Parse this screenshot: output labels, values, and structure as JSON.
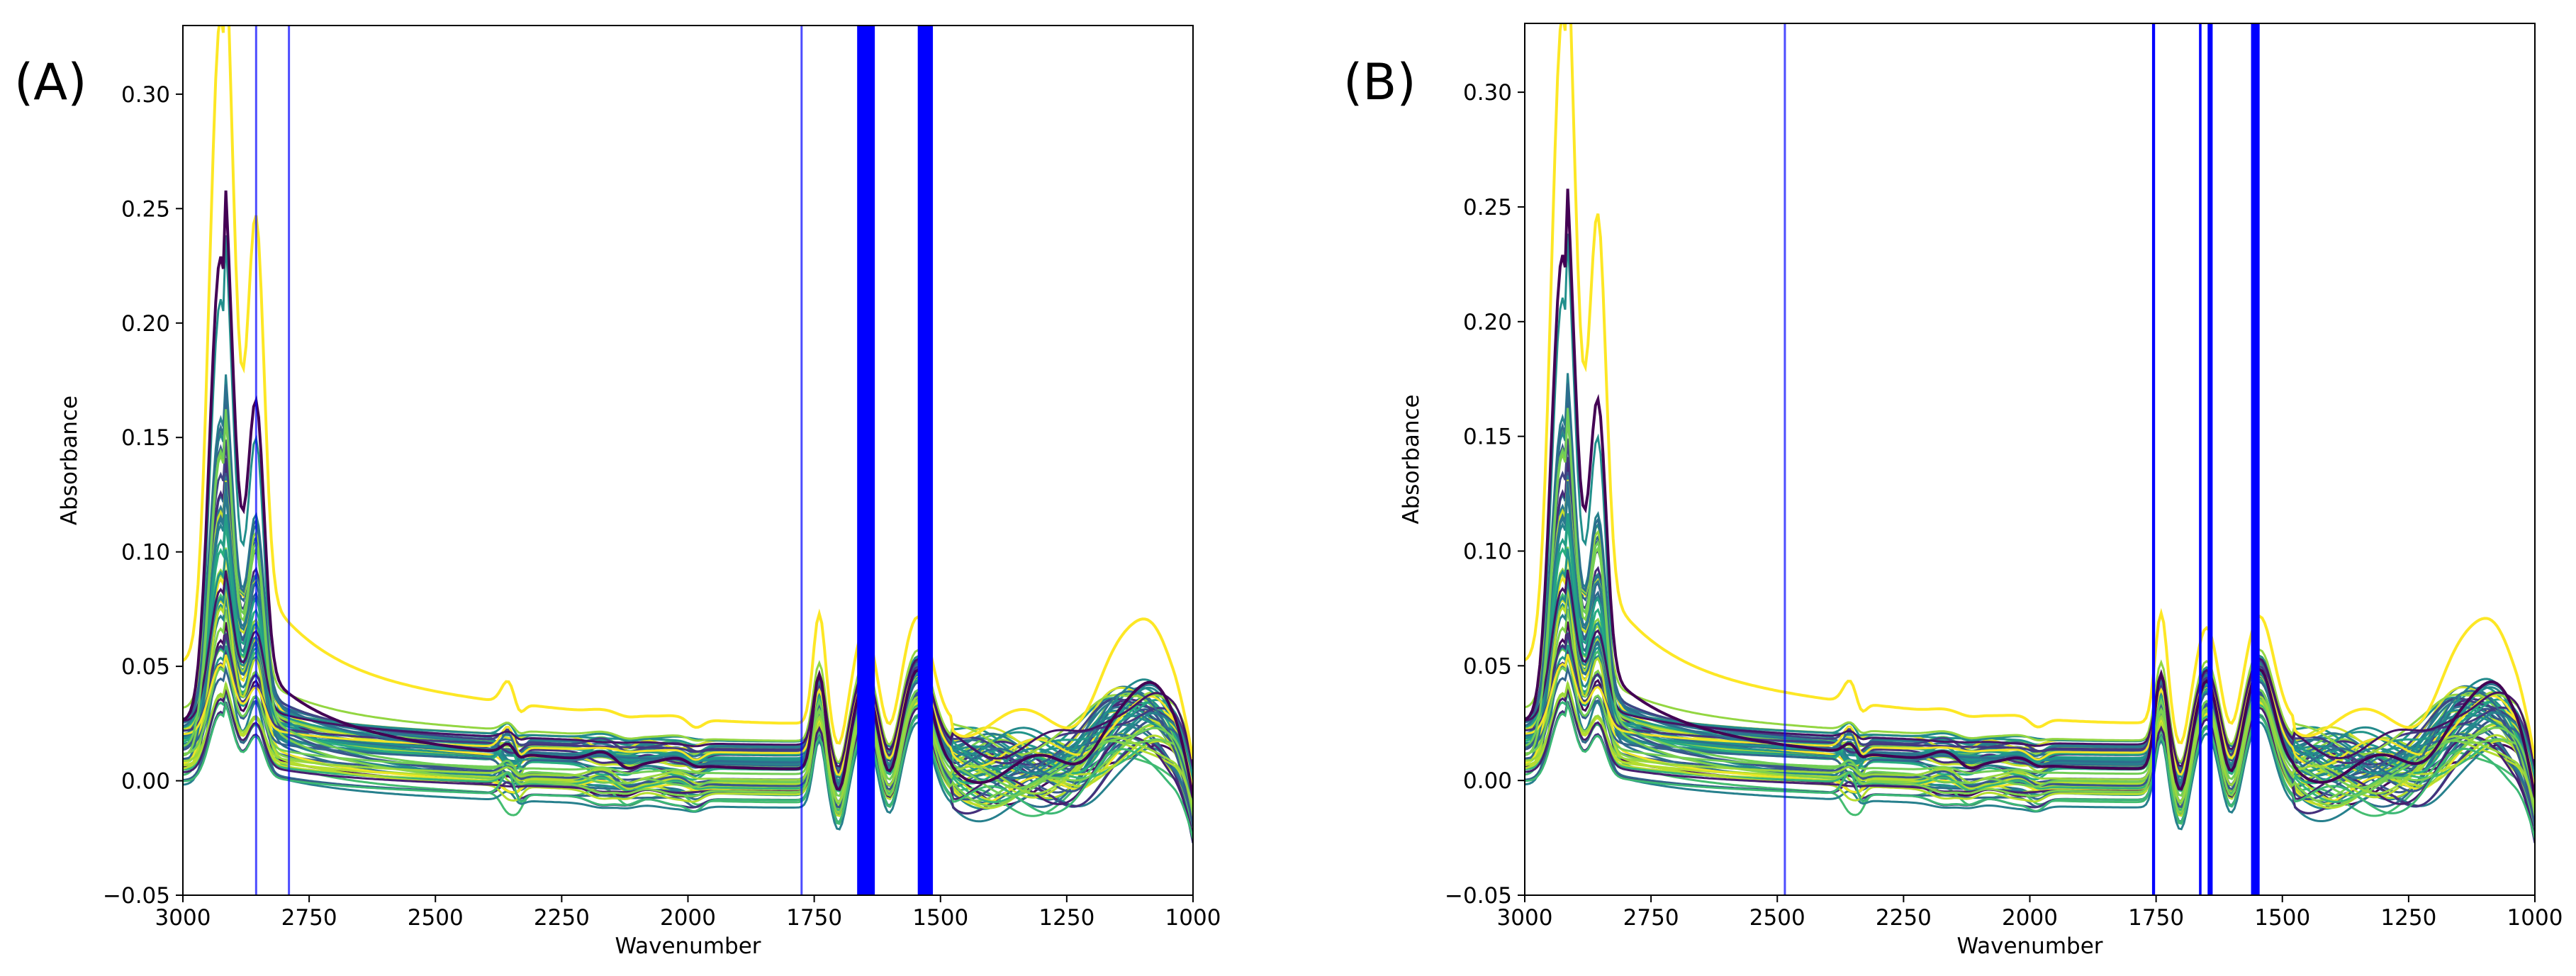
{
  "chart_data": [
    {
      "panel": "(A)",
      "type": "line",
      "xlabel": "Wavenumber",
      "ylabel": "Absorbance",
      "xlim": [
        3000,
        1000
      ],
      "ylim": [
        -0.05,
        0.33
      ],
      "xticks": [
        3000,
        2750,
        2500,
        2250,
        2000,
        1750,
        1500,
        1250,
        1000
      ],
      "yticks": [
        -0.05,
        0.0,
        0.05,
        0.1,
        0.15,
        0.2,
        0.25,
        0.3
      ],
      "xtick_labels": [
        "3000",
        "2750",
        "2500",
        "2250",
        "2000",
        "1750",
        "1500",
        "1250",
        "1000"
      ],
      "ytick_labels": [
        "−0.05",
        "0.00",
        "0.05",
        "0.10",
        "0.15",
        "0.20",
        "0.25",
        "0.30"
      ],
      "n_spectra": 60,
      "max_peak_absorbance": 0.32,
      "selected_wavenumbers": [
        {
          "from": 2855,
          "to": 2855
        },
        {
          "from": 2790,
          "to": 2790
        },
        {
          "from": 1775,
          "to": 1775
        },
        {
          "from": 1665,
          "to": 1630
        },
        {
          "from": 1545,
          "to": 1515
        }
      ],
      "band_color": "#0000ff"
    },
    {
      "panel": "(B)",
      "type": "line",
      "xlabel": "Wavenumber",
      "ylabel": "Absorbance",
      "xlim": [
        3000,
        1000
      ],
      "ylim": [
        -0.05,
        0.33
      ],
      "xticks": [
        3000,
        2750,
        2500,
        2250,
        2000,
        1750,
        1500,
        1250,
        1000
      ],
      "yticks": [
        -0.05,
        0.0,
        0.05,
        0.1,
        0.15,
        0.2,
        0.25,
        0.3
      ],
      "xtick_labels": [
        "3000",
        "2750",
        "2500",
        "2250",
        "2000",
        "1750",
        "1500",
        "1250",
        "1000"
      ],
      "ytick_labels": [
        "−0.05",
        "0.00",
        "0.05",
        "0.10",
        "0.15",
        "0.20",
        "0.25",
        "0.30"
      ],
      "n_spectra": 60,
      "max_peak_absorbance": 0.32,
      "selected_wavenumbers": [
        {
          "from": 2485,
          "to": 2485
        },
        {
          "from": 1758,
          "to": 1752
        },
        {
          "from": 1665,
          "to": 1660
        },
        {
          "from": 1648,
          "to": 1638
        },
        {
          "from": 1562,
          "to": 1545
        }
      ],
      "band_color": "#0000ff"
    }
  ],
  "colors": {
    "spectra_palette": [
      "#440154",
      "#472d7b",
      "#3b528b",
      "#2c728e",
      "#21918c",
      "#28ae80",
      "#5ec962",
      "#addc30",
      "#fde725"
    ],
    "band": "#0000ff"
  }
}
